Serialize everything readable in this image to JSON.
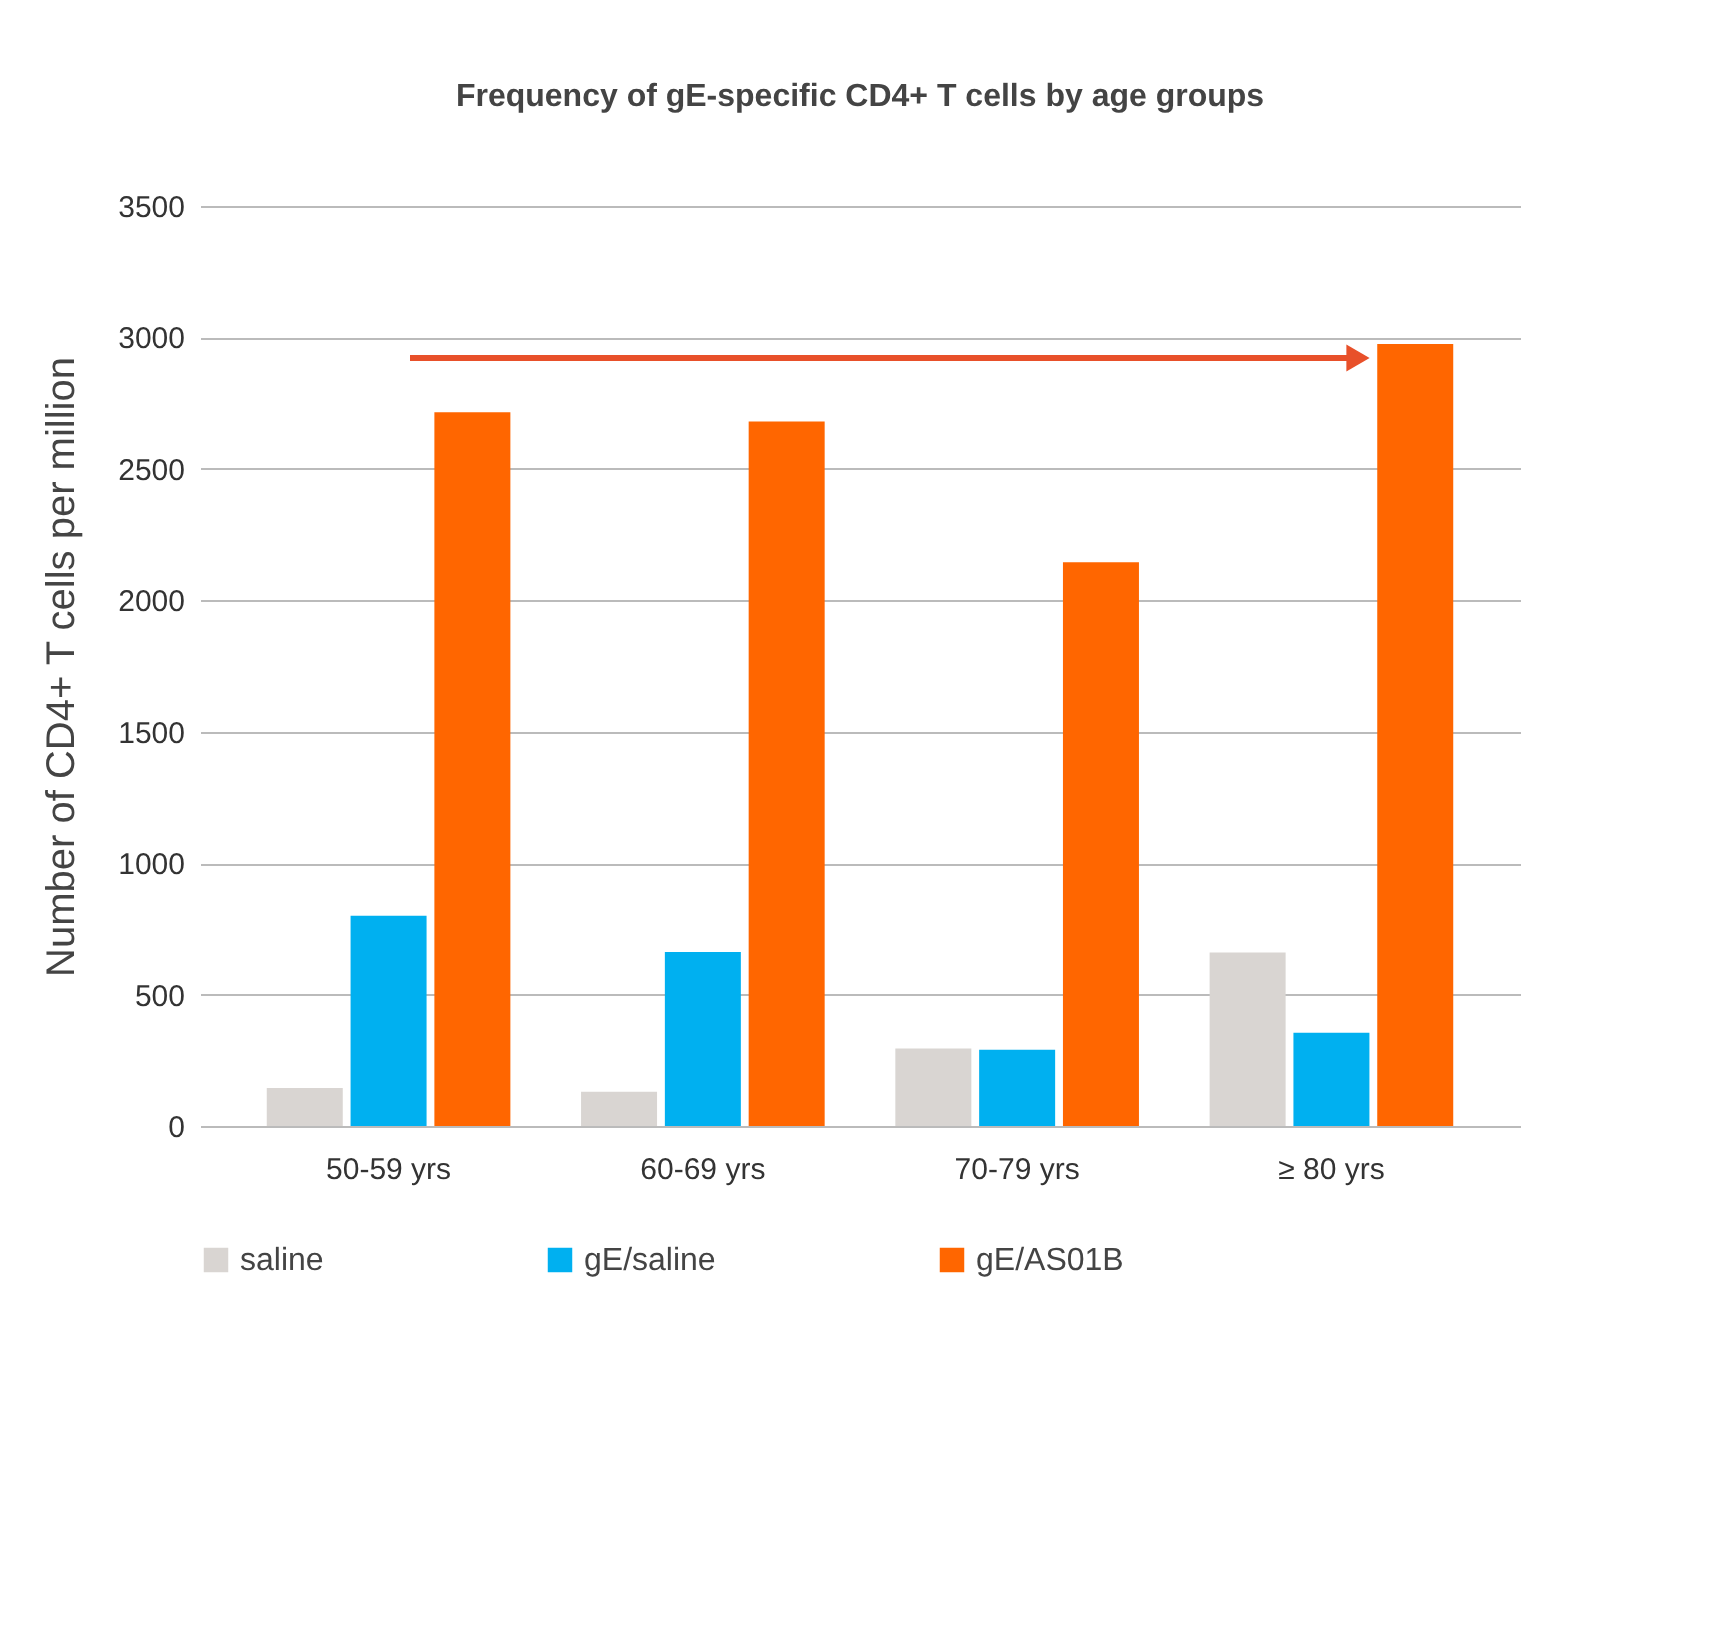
{
  "chart_data": {
    "type": "bar",
    "title": "Frequency of gE-specific CD4+ T cells by age groups",
    "ylabel": "Number of CD4+ T cells per million",
    "categories": [
      "50-59 yrs",
      "60-69 yrs",
      "70-79 yrs",
      "≥ 80 yrs"
    ],
    "series": [
      {
        "name": "saline",
        "color": "#d9d5d2",
        "values": [
          145,
          130,
          295,
          660
        ]
      },
      {
        "name": "gE/saline",
        "color": "#00b0f0",
        "values": [
          800,
          662,
          290,
          355
        ]
      },
      {
        "name": "gE/AS01B",
        "color": "#ff6600",
        "values": [
          2715,
          2680,
          2145,
          2975
        ]
      }
    ],
    "ylim": [
      0,
      3500
    ],
    "yticks": [
      0,
      500,
      1000,
      1500,
      2000,
      2500,
      3000,
      3500
    ],
    "grid": "y",
    "legend": "bottom"
  }
}
